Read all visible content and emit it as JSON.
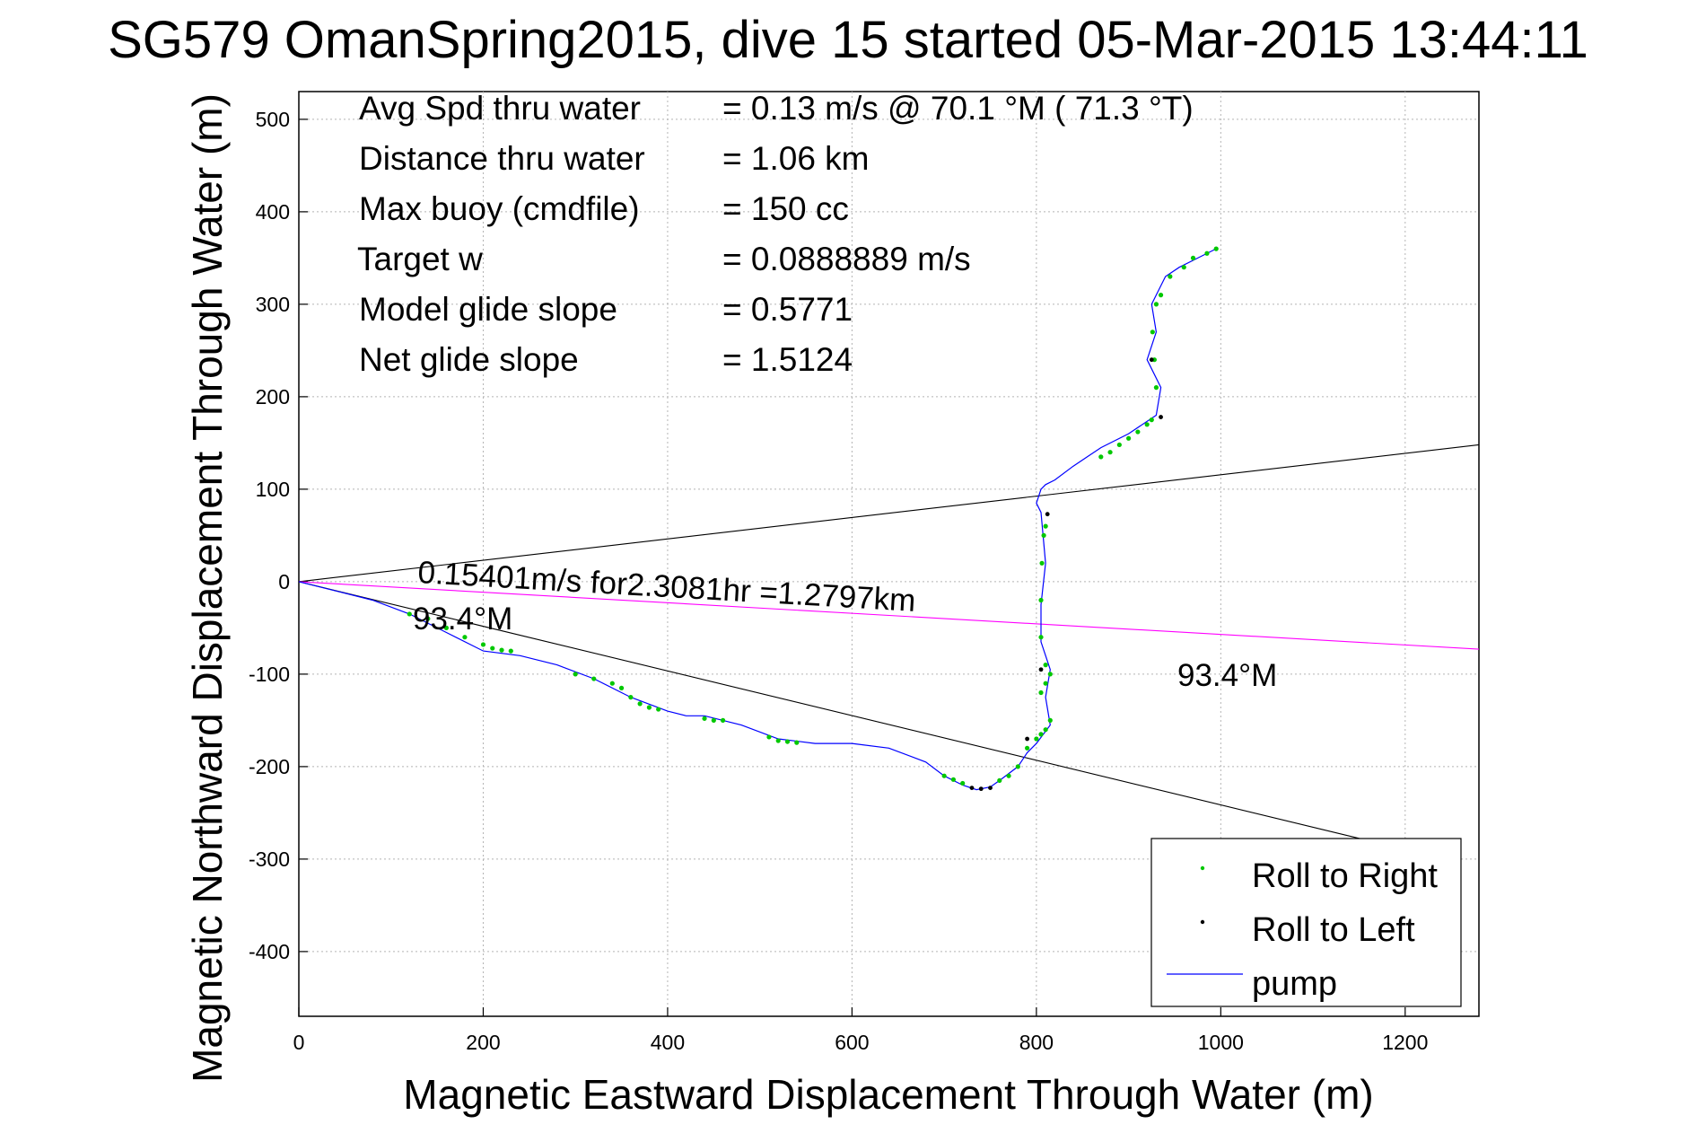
{
  "chart_data": {
    "type": "line",
    "title": "SG579 OmanSpring2015, dive 15 started 05-Mar-2015 13:44:11",
    "xlabel": "Magnetic Eastward Displacement Through Water (m)",
    "ylabel": "Magnetic Northward Displacement Through Water (m)",
    "xlim": [
      0,
      1280
    ],
    "ylim": [
      -470,
      530
    ],
    "x_ticks": [
      "0",
      "200",
      "400",
      "600",
      "800",
      "1000",
      "1200"
    ],
    "y_ticks": [
      "500",
      "400",
      "300",
      "200",
      "100",
      "0",
      "-100",
      "-200",
      "-300",
      "-400"
    ],
    "grid": true,
    "legend_placement": "bottom-right",
    "legend": [
      {
        "label": "Roll to Right",
        "color": "#00c800",
        "marker": "dot"
      },
      {
        "label": "Roll to Left",
        "color": "#000000",
        "marker": "dot"
      },
      {
        "label": "pump",
        "color": "#0000ff",
        "marker": "line"
      }
    ],
    "info_lines": [
      {
        "label": "Avg Spd thru water",
        "value": "=  0.13 m/s @  70.1 °M ( 71.3 °T)"
      },
      {
        "label": "Distance thru water",
        "value": "=  1.06 km"
      },
      {
        "label": "Max buoy (cmdfile)",
        "value": "= 150 cc"
      },
      {
        "label": "Target w",
        "value": "= 0.0888889 m/s"
      },
      {
        "label": "Model glide slope",
        "value": "= 0.5771"
      },
      {
        "label": "Net glide slope",
        "value": "= 1.5124"
      }
    ],
    "annotations": {
      "current_label": "0.15401m/s for2.3081hr =1.2797km",
      "heading_label_left": "93.4°M",
      "heading_label_right": "93.4°M"
    },
    "reference_lines": [
      {
        "name": "upper-bound",
        "color": "#000000",
        "x": [
          0,
          1280
        ],
        "y": [
          0,
          148
        ]
      },
      {
        "name": "lower-bound",
        "color": "#000000",
        "x": [
          0,
          1160
        ],
        "y": [
          0,
          -280
        ]
      },
      {
        "name": "current",
        "color": "#ff00ff",
        "x": [
          0,
          1280
        ],
        "y": [
          0,
          -73
        ]
      }
    ],
    "series": [
      {
        "name": "pump",
        "color": "#0000ff",
        "x": [
          0,
          40,
          80,
          120,
          160,
          200,
          240,
          280,
          320,
          360,
          400,
          420,
          440,
          480,
          520,
          560,
          600,
          640,
          680,
          700,
          720,
          735,
          750,
          760,
          780,
          790,
          800,
          815,
          810,
          815,
          805,
          805,
          810,
          805,
          800,
          805,
          810,
          820,
          840,
          870,
          900,
          930,
          935,
          920,
          930,
          925,
          930,
          940,
          955,
          975,
          995
        ],
        "y": [
          0,
          -10,
          -20,
          -35,
          -55,
          -75,
          -80,
          -90,
          -105,
          -125,
          -140,
          -145,
          -145,
          -155,
          -170,
          -175,
          -175,
          -180,
          -195,
          -210,
          -220,
          -225,
          -222,
          -215,
          -200,
          -185,
          -175,
          -155,
          -125,
          -95,
          -65,
          -25,
          20,
          75,
          85,
          100,
          105,
          110,
          125,
          145,
          160,
          180,
          210,
          240,
          270,
          300,
          310,
          330,
          340,
          350,
          360
        ]
      },
      {
        "name": "Roll to Right",
        "color": "#00c800",
        "x": [
          120,
          140,
          160,
          180,
          200,
          210,
          220,
          230,
          300,
          320,
          340,
          350,
          360,
          370,
          380,
          390,
          440,
          450,
          460,
          510,
          520,
          530,
          540,
          700,
          710,
          720,
          760,
          770,
          780,
          790,
          800,
          805,
          810,
          815,
          805,
          810,
          815,
          810,
          805,
          805,
          806,
          810,
          808,
          870,
          880,
          890,
          900,
          910,
          920,
          925,
          930,
          928,
          926,
          930,
          935,
          945,
          960,
          970,
          985,
          995
        ],
        "y": [
          -35,
          -40,
          -50,
          -60,
          -68,
          -72,
          -74,
          -75,
          -100,
          -105,
          -110,
          -115,
          -125,
          -132,
          -136,
          -138,
          -148,
          -150,
          -150,
          -168,
          -172,
          -173,
          -174,
          -210,
          -214,
          -218,
          -215,
          -210,
          -200,
          -180,
          -170,
          -165,
          -160,
          -150,
          -120,
          -110,
          -100,
          -90,
          -60,
          -20,
          20,
          60,
          50,
          135,
          140,
          148,
          155,
          162,
          170,
          175,
          210,
          240,
          270,
          300,
          310,
          330,
          340,
          350,
          355,
          360
        ]
      },
      {
        "name": "Roll to Left",
        "color": "#000000",
        "x": [
          730,
          740,
          750,
          935,
          925,
          805,
          812,
          790
        ],
        "y": [
          -223,
          -224,
          -223,
          178,
          240,
          -95,
          73,
          -170
        ]
      }
    ]
  }
}
